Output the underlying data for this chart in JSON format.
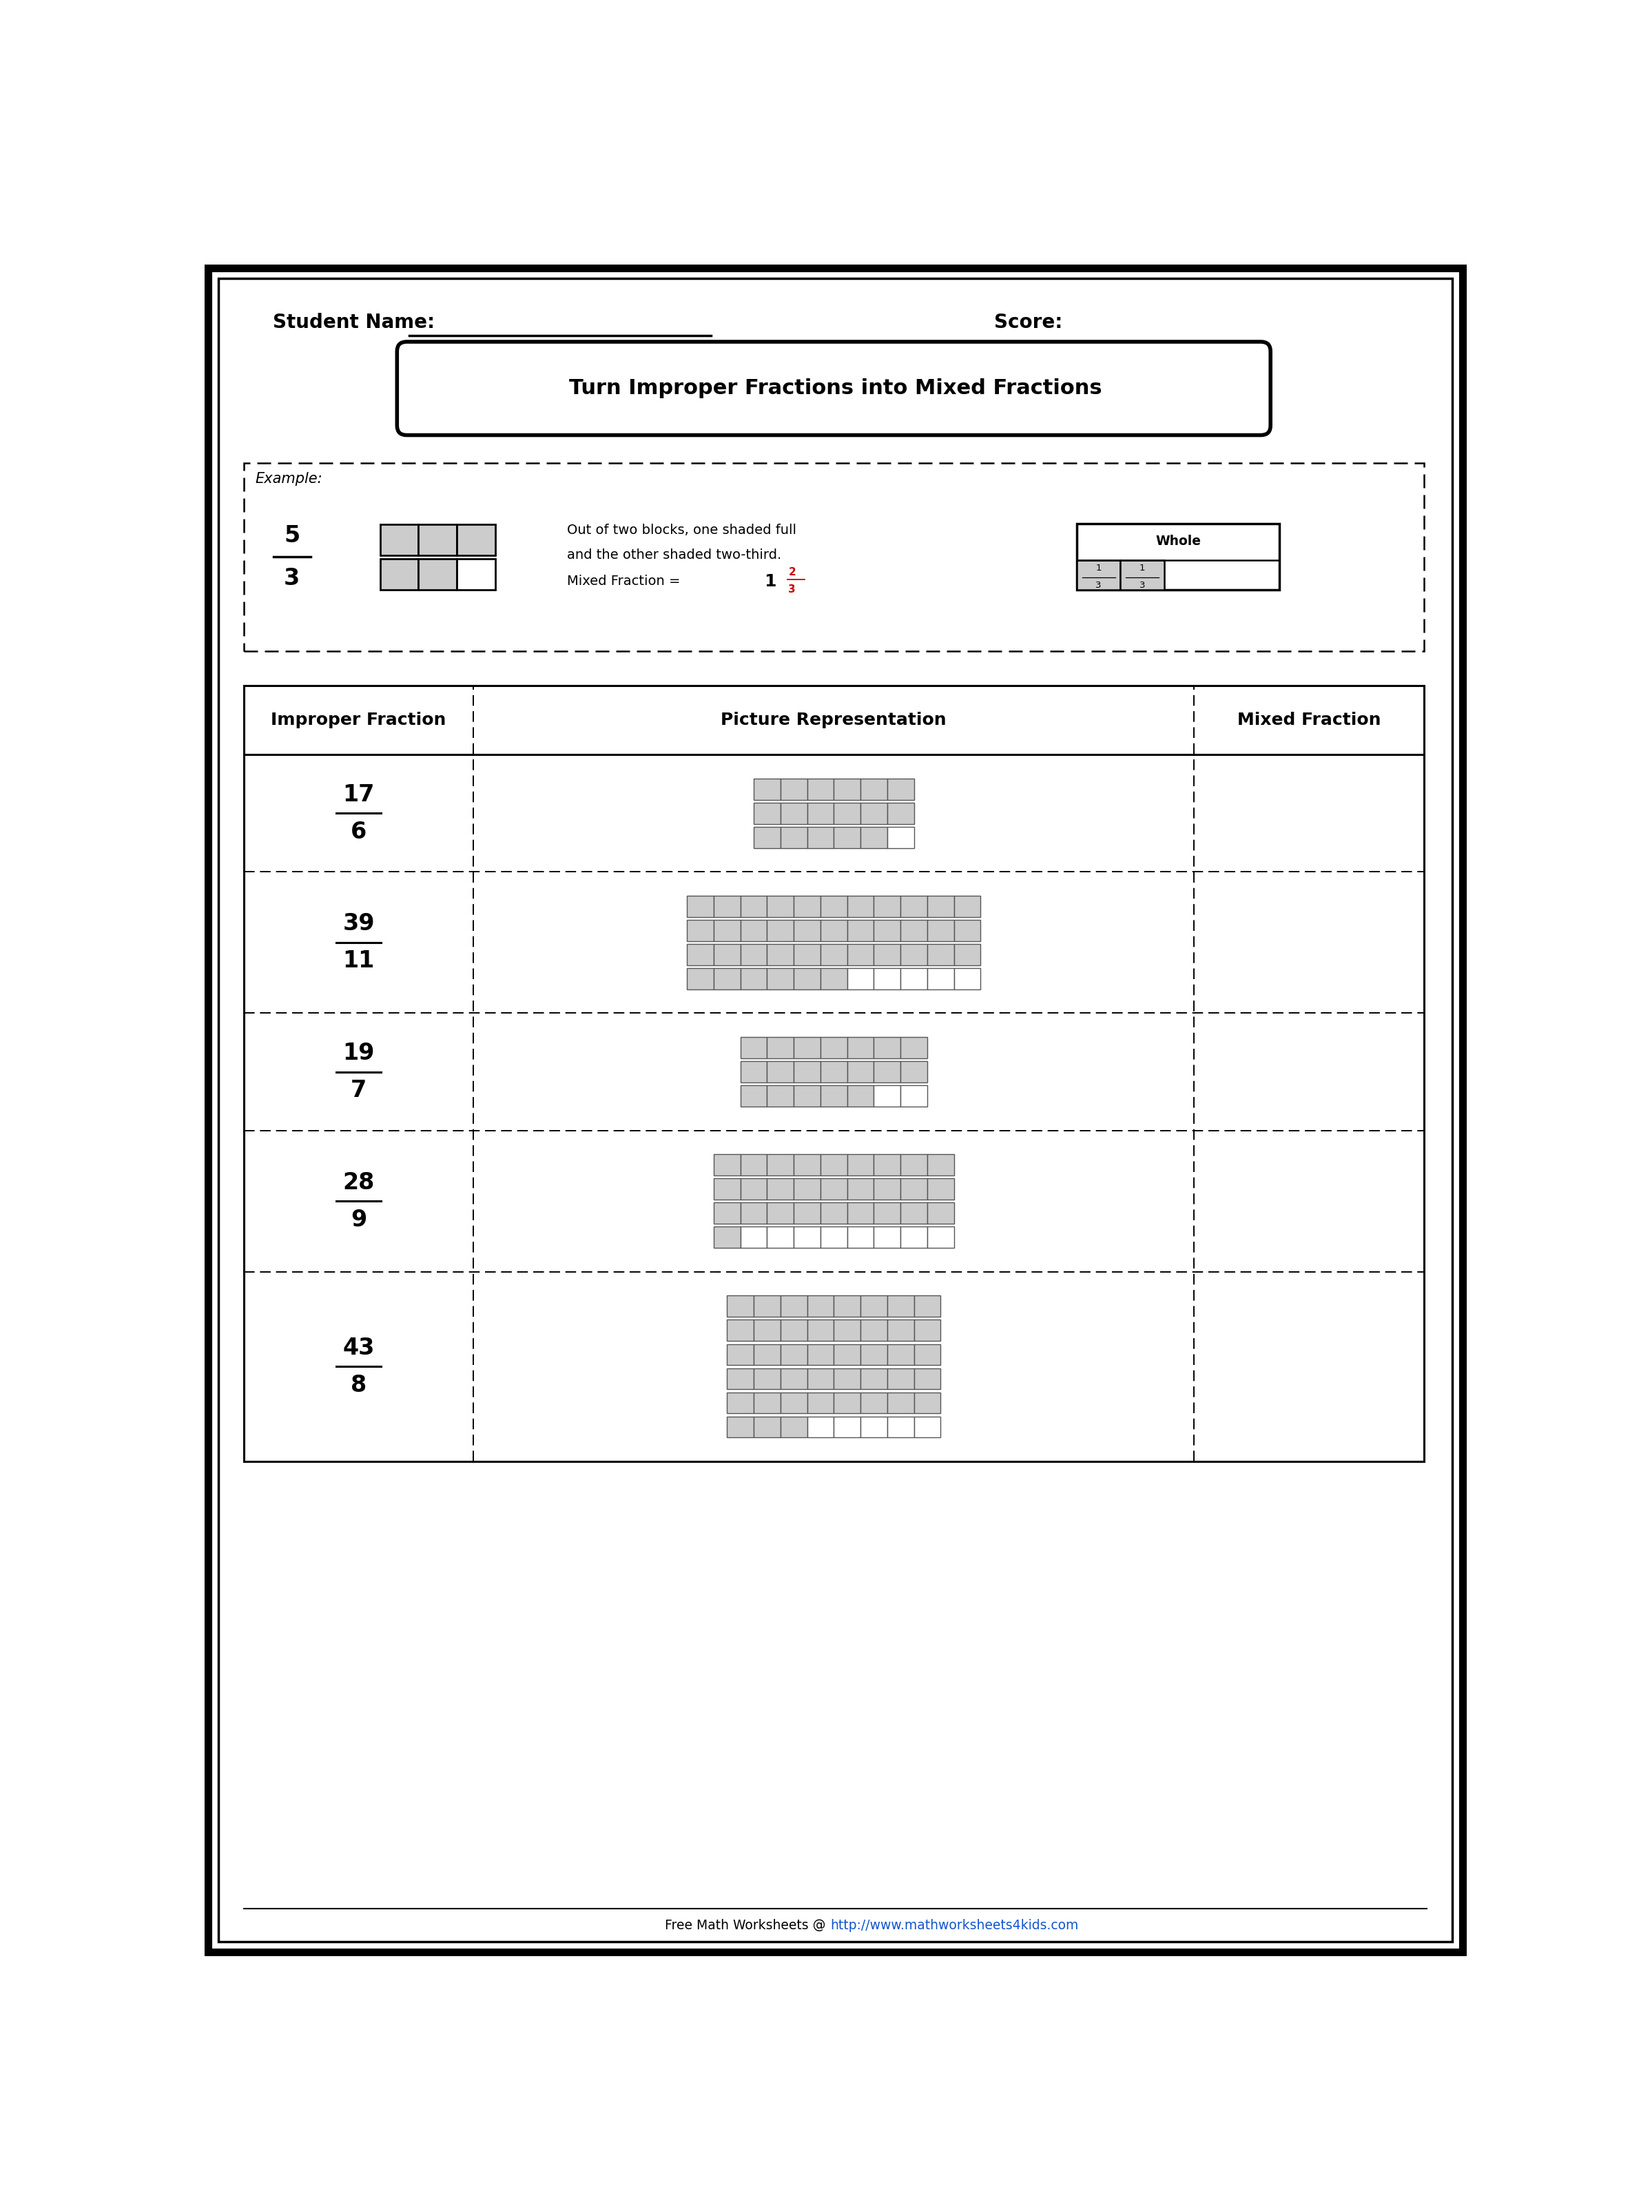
{
  "title": "Turn Improper Fractions into Mixed Fractions",
  "student_name_label": "Student Name:",
  "score_label": "Score:",
  "example_label": "Example:",
  "example_fraction_num": "5",
  "example_fraction_den": "3",
  "example_text1": "Out of two blocks, one shaded full",
  "example_text2": "and the other shaded two-third.",
  "example_mixed_prefix": "Mixed Fraction = ",
  "example_mixed_whole": "1",
  "example_mixed_num": "2",
  "example_mixed_den": "3",
  "whole_label": "Whole",
  "col_headers": [
    "Improper Fraction",
    "Picture Representation",
    "Mixed Fraction"
  ],
  "fractions": [
    {
      "num": "17",
      "den": "6",
      "whole": 2,
      "remainder": 5,
      "denom": 6
    },
    {
      "num": "39",
      "den": "11",
      "whole": 3,
      "remainder": 6,
      "denom": 11
    },
    {
      "num": "19",
      "den": "7",
      "whole": 2,
      "remainder": 5,
      "denom": 7
    },
    {
      "num": "28",
      "den": "9",
      "whole": 3,
      "remainder": 1,
      "denom": 9
    },
    {
      "num": "43",
      "den": "8",
      "whole": 5,
      "remainder": 3,
      "denom": 8
    }
  ],
  "footer_plain": "Free Math Worksheets @ ",
  "footer_url": "http://www.mathworksheets4kids.com",
  "bg_color": "#ffffff",
  "block_fill": "#cccccc",
  "block_edge": "#555555",
  "red_color": "#cc0000",
  "url_color": "#1155cc"
}
